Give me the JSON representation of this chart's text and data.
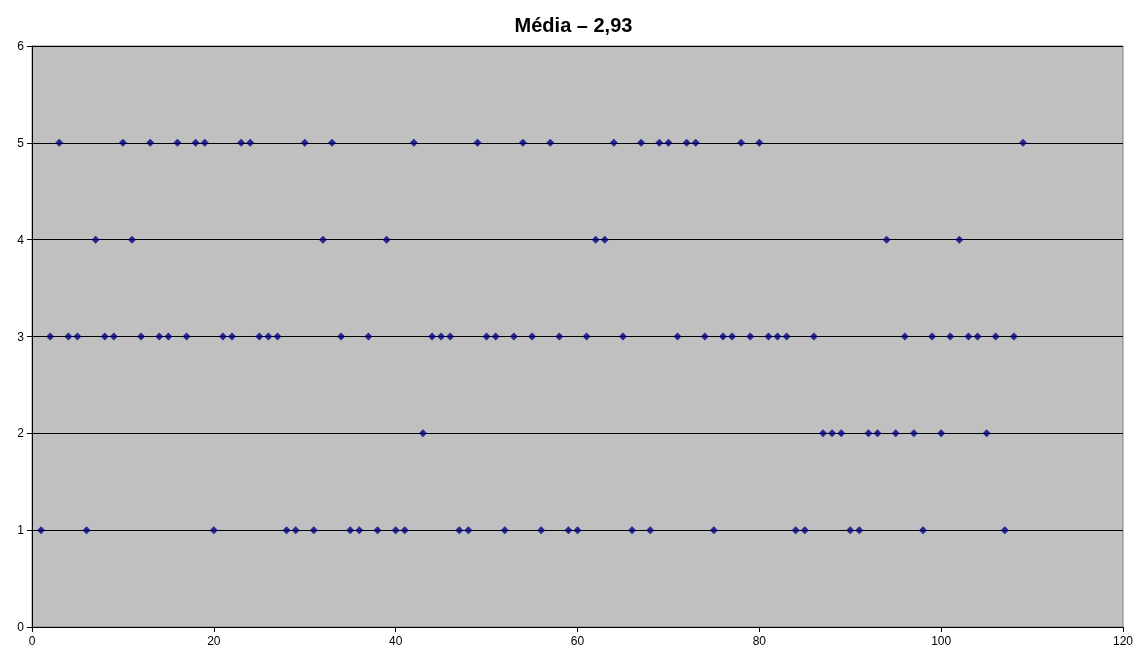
{
  "chart_data": {
    "type": "scatter",
    "title": "Média – 2,93",
    "x": [
      1,
      2,
      3,
      4,
      5,
      6,
      7,
      8,
      9,
      10,
      11,
      12,
      13,
      14,
      15,
      16,
      17,
      18,
      19,
      20,
      21,
      22,
      23,
      24,
      25,
      26,
      27,
      28,
      29,
      30,
      31,
      32,
      33,
      34,
      35,
      36,
      37,
      38,
      39,
      40,
      41,
      42,
      43,
      44,
      45,
      46,
      47,
      48,
      49,
      50,
      51,
      52,
      53,
      54,
      55,
      56,
      57,
      58,
      59,
      60,
      61,
      62,
      63,
      64,
      65,
      66,
      67,
      68,
      69,
      70,
      71,
      72,
      73,
      74,
      75,
      76,
      77,
      78,
      79,
      80,
      81,
      82,
      83,
      84,
      85,
      86,
      87,
      88,
      89,
      90,
      91,
      92,
      93,
      94,
      95,
      96,
      97,
      98,
      99,
      100,
      101,
      102,
      103,
      104,
      105,
      106,
      107,
      108,
      109
    ],
    "series": [
      {
        "color": "#000080",
        "values": [
          1,
          3,
          5,
          3,
          3,
          1,
          4,
          3,
          3,
          5,
          4,
          3,
          5,
          3,
          3,
          5,
          3,
          5,
          5,
          1,
          3,
          3,
          5,
          5,
          3,
          3,
          3,
          1,
          1,
          5,
          1,
          4,
          5,
          3,
          1,
          1,
          3,
          1,
          4,
          1,
          1,
          5,
          2,
          3,
          3,
          3,
          1,
          1,
          5,
          3,
          3,
          1,
          3,
          5,
          3,
          1,
          5,
          3,
          1,
          1,
          3,
          4,
          4,
          5,
          3,
          1,
          5,
          1,
          5,
          5,
          3,
          5,
          5,
          3,
          1,
          3,
          3,
          5,
          3,
          5,
          3,
          3,
          3,
          1,
          1,
          3,
          2,
          2,
          2,
          1,
          1,
          2,
          2,
          4,
          2,
          3,
          2,
          1,
          3,
          2,
          3,
          4,
          3,
          3,
          2,
          3,
          1,
          3,
          5
        ]
      }
    ],
    "xlim": [
      0,
      120
    ],
    "xticks": [
      0,
      20,
      40,
      60,
      80,
      100,
      120
    ],
    "ylim": [
      0,
      6
    ],
    "yticks": [
      0,
      1,
      2,
      3,
      4,
      5,
      6
    ],
    "grid": "y",
    "marker": "diamond"
  }
}
